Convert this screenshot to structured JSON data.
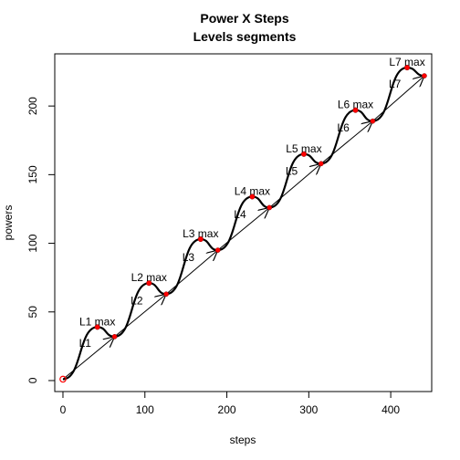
{
  "chart_data": {
    "type": "line",
    "title": "Power X Steps",
    "subtitle": "Levels segments",
    "xlabel": "steps",
    "ylabel": "powers",
    "xlim": [
      -10,
      450
    ],
    "ylim": [
      -8,
      238
    ],
    "xticks": [
      0,
      100,
      200,
      300,
      400
    ],
    "yticks": [
      0,
      50,
      100,
      150,
      200
    ],
    "grid": false,
    "segment_points": [
      {
        "x": 0,
        "y": 1
      },
      {
        "x": 63,
        "y": 32
      },
      {
        "x": 126,
        "y": 63
      },
      {
        "x": 189,
        "y": 95
      },
      {
        "x": 252,
        "y": 126
      },
      {
        "x": 315,
        "y": 158
      },
      {
        "x": 378,
        "y": 189
      },
      {
        "x": 441,
        "y": 222
      }
    ],
    "max_points": [
      {
        "x": 42,
        "y": 39
      },
      {
        "x": 105,
        "y": 71
      },
      {
        "x": 168,
        "y": 103
      },
      {
        "x": 231,
        "y": 134
      },
      {
        "x": 294,
        "y": 165
      },
      {
        "x": 357,
        "y": 197
      },
      {
        "x": 420,
        "y": 228
      }
    ],
    "segment_labels": [
      "L1",
      "L2",
      "L3",
      "L4",
      "L5",
      "L6",
      "L7"
    ],
    "max_labels": [
      "L1 max",
      "L2 max",
      "L3 max",
      "L4 max",
      "L5 max",
      "L6 max",
      "L7 max"
    ],
    "colors": {
      "point": "#ff0000",
      "line": "#000000"
    }
  }
}
